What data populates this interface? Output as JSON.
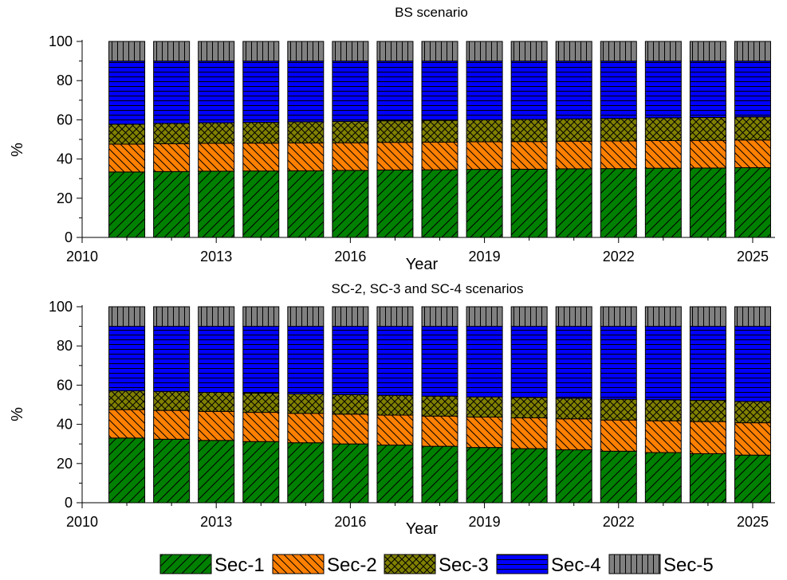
{
  "legend": {
    "placement": "bottom",
    "items": [
      {
        "label": "Sec-1",
        "color": "#008000",
        "pattern": "diag-up"
      },
      {
        "label": "Sec-2",
        "color": "#ff8000",
        "pattern": "diag-down"
      },
      {
        "label": "Sec-3",
        "color": "#808000",
        "pattern": "crosshatch"
      },
      {
        "label": "Sec-4",
        "color": "#0000ff",
        "pattern": "horizontal"
      },
      {
        "label": "Sec-5",
        "color": "#808080",
        "pattern": "vertical"
      }
    ]
  },
  "chart_data": [
    {
      "type": "bar",
      "stacked": true,
      "title": "BS scenario",
      "xlabel": "Year",
      "ylabel": "%",
      "xlim": [
        2010,
        2025.5
      ],
      "ylim": [
        0,
        100
      ],
      "xticks": [
        2010,
        2013,
        2016,
        2019,
        2022,
        2025
      ],
      "yticks": [
        0,
        20,
        40,
        60,
        80,
        100
      ],
      "grid": false,
      "x": [
        2011,
        2012,
        2013,
        2014,
        2015,
        2016,
        2017,
        2018,
        2019,
        2020,
        2021,
        2022,
        2023,
        2024,
        2025
      ],
      "series": [
        {
          "name": "Sec-1",
          "values": [
            33.4,
            33.6,
            33.8,
            33.9,
            34.0,
            34.2,
            34.4,
            34.5,
            34.7,
            34.8,
            35.0,
            35.1,
            35.3,
            35.4,
            35.6
          ]
        },
        {
          "name": "Sec-2",
          "values": [
            14.2,
            14.2,
            14.2,
            14.2,
            14.2,
            14.1,
            14.1,
            14.1,
            14.1,
            14.1,
            14.1,
            14.1,
            14.1,
            14.1,
            14.1
          ]
        },
        {
          "name": "Sec-3",
          "values": [
            10.2,
            10.4,
            10.5,
            10.6,
            10.8,
            10.9,
            11.0,
            11.1,
            11.2,
            11.3,
            11.4,
            11.5,
            11.6,
            11.7,
            11.8
          ]
        },
        {
          "name": "Sec-4",
          "values": [
            32.2,
            31.8,
            31.5,
            31.3,
            31.0,
            30.8,
            30.5,
            30.3,
            30.0,
            29.8,
            29.5,
            29.3,
            29.0,
            28.8,
            28.5
          ]
        },
        {
          "name": "Sec-5",
          "values": [
            10.0,
            10.0,
            10.0,
            10.0,
            10.0,
            10.0,
            10.0,
            10.0,
            10.0,
            10.0,
            10.0,
            10.0,
            10.0,
            10.0,
            10.0
          ]
        }
      ]
    },
    {
      "type": "bar",
      "stacked": true,
      "title": "SC-2, SC-3 and SC-4 scenarios",
      "xlabel": "Year",
      "ylabel": "%",
      "xlim": [
        2010,
        2025.5
      ],
      "ylim": [
        0,
        100
      ],
      "xticks": [
        2010,
        2013,
        2016,
        2019,
        2022,
        2025
      ],
      "yticks": [
        0,
        20,
        40,
        60,
        80,
        100
      ],
      "grid": false,
      "x": [
        2011,
        2012,
        2013,
        2014,
        2015,
        2016,
        2017,
        2018,
        2019,
        2020,
        2021,
        2022,
        2023,
        2024,
        2025
      ],
      "series": [
        {
          "name": "Sec-1",
          "values": [
            33.0,
            32.4,
            31.8,
            31.2,
            30.6,
            30.0,
            29.4,
            28.8,
            28.2,
            27.6,
            27.0,
            26.3,
            25.6,
            25.0,
            24.3
          ]
        },
        {
          "name": "Sec-2",
          "values": [
            14.5,
            14.7,
            14.8,
            14.9,
            15.0,
            15.2,
            15.3,
            15.4,
            15.5,
            15.7,
            15.8,
            15.9,
            16.2,
            16.4,
            16.5
          ]
        },
        {
          "name": "Sec-3",
          "values": [
            9.6,
            9.7,
            9.7,
            9.8,
            9.9,
            10.0,
            10.1,
            10.2,
            10.3,
            10.4,
            10.5,
            10.6,
            10.7,
            10.8,
            10.9
          ]
        },
        {
          "name": "Sec-4",
          "values": [
            32.9,
            33.2,
            33.7,
            34.1,
            34.5,
            34.8,
            35.2,
            35.6,
            36.0,
            36.3,
            36.7,
            37.2,
            37.5,
            37.8,
            38.3
          ]
        },
        {
          "name": "Sec-5",
          "values": [
            10.0,
            10.0,
            10.0,
            10.0,
            10.0,
            10.0,
            10.0,
            10.0,
            10.0,
            10.0,
            10.0,
            10.0,
            10.0,
            10.0,
            10.0
          ]
        }
      ]
    }
  ]
}
